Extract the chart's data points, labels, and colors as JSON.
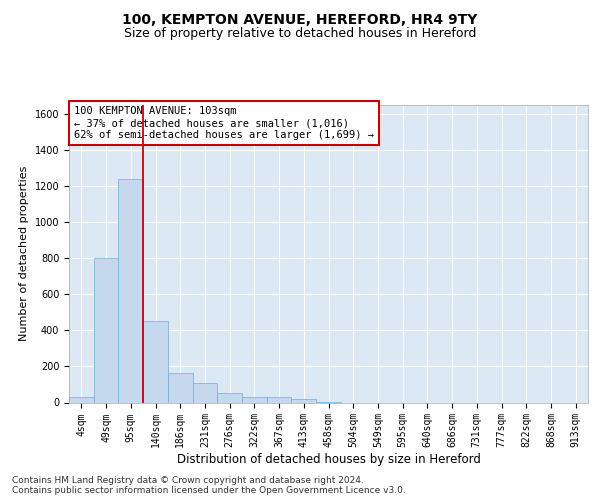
{
  "title": "100, KEMPTON AVENUE, HEREFORD, HR4 9TY",
  "subtitle": "Size of property relative to detached houses in Hereford",
  "xlabel": "Distribution of detached houses by size in Hereford",
  "ylabel": "Number of detached properties",
  "categories": [
    "4sqm",
    "49sqm",
    "95sqm",
    "140sqm",
    "186sqm",
    "231sqm",
    "276sqm",
    "322sqm",
    "367sqm",
    "413sqm",
    "458sqm",
    "504sqm",
    "549sqm",
    "595sqm",
    "640sqm",
    "686sqm",
    "731sqm",
    "777sqm",
    "822sqm",
    "868sqm",
    "913sqm"
  ],
  "values": [
    30,
    800,
    1240,
    450,
    165,
    110,
    55,
    30,
    30,
    20,
    5,
    0,
    0,
    0,
    0,
    0,
    0,
    0,
    0,
    0,
    0
  ],
  "bar_color": "#c5d8ed",
  "bar_edge_color": "#6baed6",
  "background_color": "#dce8f3",
  "grid_color": "#ffffff",
  "property_line_idx": 2,
  "property_line_color": "#cc0000",
  "annotation_text": "100 KEMPTON AVENUE: 103sqm\n← 37% of detached houses are smaller (1,016)\n62% of semi-detached houses are larger (1,699) →",
  "annotation_box_color": "#ffffff",
  "annotation_box_edge": "#cc0000",
  "ylim": [
    0,
    1650
  ],
  "yticks": [
    0,
    200,
    400,
    600,
    800,
    1000,
    1200,
    1400,
    1600
  ],
  "footer": "Contains HM Land Registry data © Crown copyright and database right 2024.\nContains public sector information licensed under the Open Government Licence v3.0.",
  "title_fontsize": 10,
  "subtitle_fontsize": 9,
  "xlabel_fontsize": 8.5,
  "ylabel_fontsize": 8,
  "tick_fontsize": 7,
  "annotation_fontsize": 7.5,
  "footer_fontsize": 6.5
}
